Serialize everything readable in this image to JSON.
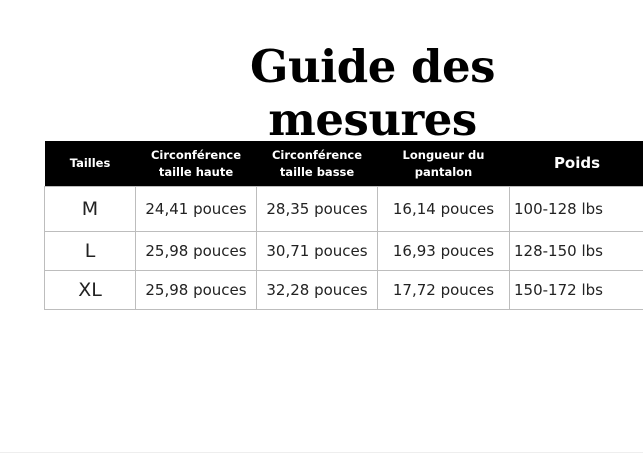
{
  "title": "Guide des mesures",
  "table": {
    "headers": [
      "Tailles",
      "Circonférence taille haute",
      "Circonférence taille basse",
      "Longueur du pantalon",
      "Poids"
    ],
    "rows": [
      [
        "M",
        "24,41 pouces",
        "28,35 pouces",
        "16,14 pouces",
        "100-128 lbs"
      ],
      [
        "L",
        "25,98 pouces",
        "30,71 pouces",
        "16,93 pouces",
        "128-150 lbs"
      ],
      [
        "XL",
        "25,98 pouces",
        "32,28 pouces",
        "17,72 pouces",
        "150-172 lbs"
      ]
    ]
  },
  "colors": {
    "header_bg": "#000000",
    "header_text": "#ffffff",
    "border": "#bdbdbd"
  }
}
